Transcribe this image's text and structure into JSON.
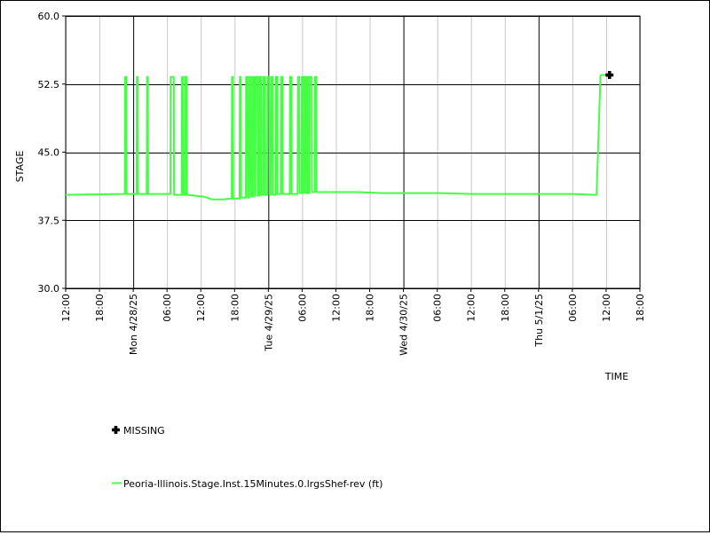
{
  "chart_data": {
    "type": "line",
    "xlabel": "TIME",
    "ylabel": "STAGE",
    "ylim": [
      30.0,
      60.0
    ],
    "yticks": [
      "30.0",
      "37.5",
      "45.0",
      "52.5",
      "60.0"
    ],
    "x_range_hours": [
      0,
      102
    ],
    "grid": true,
    "legend_position": "bottom-left",
    "colors": {
      "series": "#44ff44",
      "missing_marker": "#000000",
      "major_grid": "#000000",
      "minor_grid": "#c8c8c8"
    },
    "xticks": [
      {
        "h": 0,
        "label": "12:00"
      },
      {
        "h": 6,
        "label": "18:00"
      },
      {
        "h": 12,
        "label": "00:00",
        "date": "Mon 4/28/25"
      },
      {
        "h": 18,
        "label": "06:00"
      },
      {
        "h": 24,
        "label": "12:00"
      },
      {
        "h": 30,
        "label": "18:00"
      },
      {
        "h": 36,
        "label": "00:00",
        "date": "Tue 4/29/25"
      },
      {
        "h": 42,
        "label": "06:00"
      },
      {
        "h": 48,
        "label": "12:00"
      },
      {
        "h": 54,
        "label": "18:00"
      },
      {
        "h": 60,
        "label": "00:00",
        "date": "Wed 4/30/25"
      },
      {
        "h": 66,
        "label": "06:00"
      },
      {
        "h": 72,
        "label": "12:00"
      },
      {
        "h": 78,
        "label": "18:00"
      },
      {
        "h": 84,
        "label": "00:00",
        "date": "Thu 5/1/25"
      },
      {
        "h": 90,
        "label": "06:00"
      },
      {
        "h": 96,
        "label": "12:00"
      },
      {
        "h": 102,
        "label": "18:00"
      }
    ],
    "series": [
      {
        "name": "Peoria-Illinois.Stage.Inst.15Minutes.0.lrgsShef-rev (ft)",
        "points": [
          [
            0.0,
            40.3
          ],
          [
            10.5,
            40.4
          ],
          [
            10.55,
            53.3
          ],
          [
            10.75,
            53.3
          ],
          [
            10.8,
            40.4
          ],
          [
            12.6,
            40.4
          ],
          [
            12.65,
            53.3
          ],
          [
            12.8,
            53.3
          ],
          [
            12.85,
            40.4
          ],
          [
            14.4,
            40.4
          ],
          [
            14.45,
            53.3
          ],
          [
            14.6,
            53.3
          ],
          [
            14.65,
            40.4
          ],
          [
            18.6,
            40.4
          ],
          [
            18.65,
            53.3
          ],
          [
            19.2,
            53.3
          ],
          [
            19.25,
            40.3
          ],
          [
            20.6,
            40.3
          ],
          [
            20.65,
            53.3
          ],
          [
            20.8,
            53.3
          ],
          [
            20.85,
            40.3
          ],
          [
            21.2,
            40.3
          ],
          [
            21.25,
            53.3
          ],
          [
            21.5,
            53.3
          ],
          [
            21.55,
            40.3
          ],
          [
            24.5,
            40.1
          ],
          [
            26.0,
            39.8
          ],
          [
            28.0,
            39.8
          ],
          [
            29.5,
            39.9
          ],
          [
            29.55,
            53.3
          ],
          [
            29.7,
            53.3
          ],
          [
            29.75,
            39.9
          ],
          [
            30.9,
            39.9
          ],
          [
            30.95,
            53.3
          ],
          [
            31.1,
            53.3
          ],
          [
            31.15,
            40.0
          ],
          [
            32.0,
            40.0
          ],
          [
            32.05,
            53.3
          ],
          [
            32.3,
            53.3
          ],
          [
            32.35,
            40.0
          ],
          [
            32.6,
            40.0
          ],
          [
            32.65,
            53.3
          ],
          [
            32.9,
            53.3
          ],
          [
            32.95,
            40.1
          ],
          [
            33.2,
            40.1
          ],
          [
            33.25,
            53.3
          ],
          [
            33.5,
            53.3
          ],
          [
            33.55,
            40.2
          ],
          [
            33.7,
            40.2
          ],
          [
            33.75,
            53.3
          ],
          [
            34.1,
            53.3
          ],
          [
            34.15,
            40.2
          ],
          [
            34.4,
            40.2
          ],
          [
            34.45,
            53.3
          ],
          [
            34.7,
            53.3
          ],
          [
            34.75,
            40.3
          ],
          [
            35.1,
            40.3
          ],
          [
            35.15,
            53.3
          ],
          [
            35.4,
            53.3
          ],
          [
            35.45,
            40.3
          ],
          [
            35.8,
            40.3
          ],
          [
            35.85,
            53.3
          ],
          [
            36.2,
            53.3
          ],
          [
            36.25,
            40.3
          ],
          [
            36.5,
            40.3
          ],
          [
            36.55,
            53.3
          ],
          [
            36.8,
            53.3
          ],
          [
            36.85,
            40.3
          ],
          [
            37.3,
            40.3
          ],
          [
            37.35,
            53.3
          ],
          [
            37.6,
            53.3
          ],
          [
            37.65,
            40.4
          ],
          [
            38.2,
            40.4
          ],
          [
            38.25,
            53.3
          ],
          [
            38.5,
            53.3
          ],
          [
            38.55,
            40.4
          ],
          [
            39.8,
            40.4
          ],
          [
            39.85,
            53.3
          ],
          [
            40.1,
            53.3
          ],
          [
            40.15,
            40.4
          ],
          [
            41.2,
            40.4
          ],
          [
            41.25,
            53.3
          ],
          [
            41.5,
            53.3
          ],
          [
            41.55,
            40.5
          ],
          [
            41.9,
            40.5
          ],
          [
            41.95,
            53.3
          ],
          [
            42.1,
            53.3
          ],
          [
            42.15,
            40.5
          ],
          [
            42.35,
            40.5
          ],
          [
            42.4,
            53.3
          ],
          [
            42.6,
            53.3
          ],
          [
            42.65,
            40.5
          ],
          [
            42.8,
            40.5
          ],
          [
            42.85,
            53.3
          ],
          [
            43.0,
            53.3
          ],
          [
            43.05,
            40.5
          ],
          [
            43.3,
            40.5
          ],
          [
            43.35,
            53.3
          ],
          [
            43.7,
            53.3
          ],
          [
            43.75,
            40.6
          ],
          [
            44.2,
            40.6
          ],
          [
            44.25,
            53.3
          ],
          [
            44.5,
            53.3
          ],
          [
            44.55,
            40.6
          ],
          [
            47.0,
            40.6
          ],
          [
            52.0,
            40.6
          ],
          [
            56.0,
            40.5
          ],
          [
            60.0,
            40.5
          ],
          [
            66.0,
            40.5
          ],
          [
            72.0,
            40.4
          ],
          [
            78.0,
            40.4
          ],
          [
            84.0,
            40.4
          ],
          [
            90.0,
            40.4
          ],
          [
            94.0,
            40.3
          ],
          [
            94.3,
            40.3
          ],
          [
            95.0,
            53.5
          ],
          [
            96.6,
            53.5
          ]
        ]
      }
    ],
    "missing": {
      "name": "MISSING",
      "points": [
        [
          96.6,
          53.5
        ]
      ]
    }
  }
}
